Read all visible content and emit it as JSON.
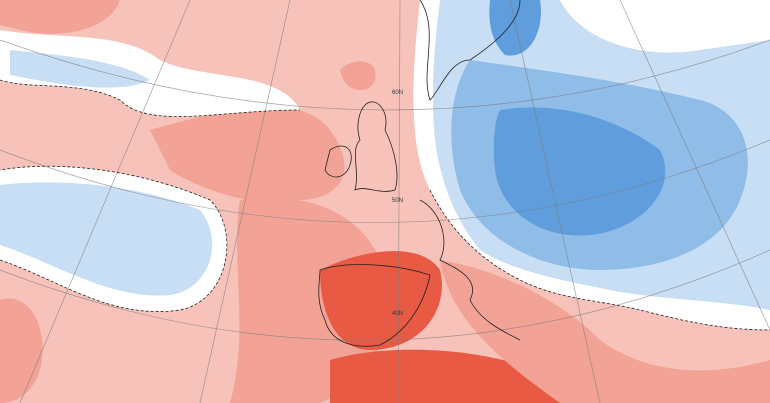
{
  "map": {
    "latitude_labels": [
      "60N",
      "50N",
      "40N"
    ]
  }
}
